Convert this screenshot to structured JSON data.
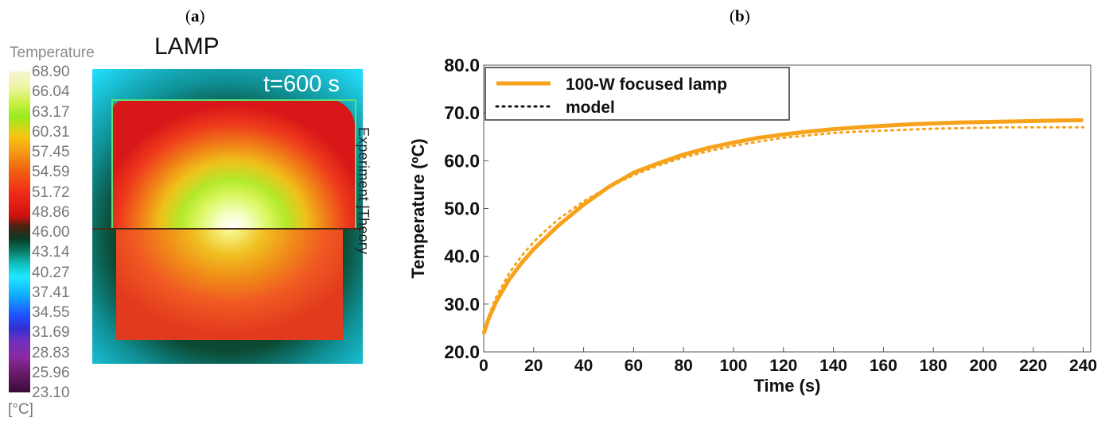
{
  "panels": {
    "a": "a",
    "b": "b"
  },
  "heatmap": {
    "colorbar_title": "Temperature",
    "title": "LAMP",
    "time_label": "t=600 s",
    "side_label_left": "Experiment",
    "side_label_sep": "|",
    "side_label_right": "Theory",
    "unit_label": "[°C]",
    "colorbar_ticks": [
      "68.90",
      "66.04",
      "63.17",
      "60.31",
      "57.45",
      "54.59",
      "51.72",
      "48.86",
      "46.00",
      "43.14",
      "40.27",
      "37.41",
      "34.55",
      "31.69",
      "28.83",
      "25.96",
      "23.10"
    ]
  },
  "chart_data": {
    "type": "line",
    "xlabel": "Time (s)",
    "ylabel": "Temperature (ºC)",
    "xlim": [
      0,
      243
    ],
    "ylim": [
      20,
      80
    ],
    "xticks": [
      0,
      20,
      40,
      60,
      80,
      100,
      120,
      140,
      160,
      180,
      200,
      220,
      240
    ],
    "yticks": [
      "20.0",
      "30.0",
      "40.0",
      "50.0",
      "60.0",
      "70.0",
      "80.0"
    ],
    "legend_position": "top-left",
    "grid": false,
    "series": [
      {
        "name": "100-W focused lamp",
        "style": "solid",
        "color": "#f7a21b",
        "x": [
          0,
          2,
          5,
          10,
          15,
          20,
          25,
          30,
          40,
          50,
          60,
          70,
          80,
          90,
          100,
          110,
          120,
          130,
          140,
          150,
          160,
          170,
          180,
          190,
          200,
          210,
          220,
          230,
          240
        ],
        "y": [
          23.8,
          27.0,
          30.5,
          35.0,
          38.5,
          41.5,
          44.0,
          46.5,
          50.8,
          54.5,
          57.5,
          59.5,
          61.3,
          62.7,
          63.8,
          64.8,
          65.5,
          66.1,
          66.6,
          67.0,
          67.3,
          67.6,
          67.8,
          68.0,
          68.1,
          68.2,
          68.3,
          68.4,
          68.5
        ]
      },
      {
        "name": "model",
        "style": "dotted",
        "color": "#f7a21b",
        "x": [
          0,
          2,
          5,
          10,
          15,
          20,
          25,
          30,
          40,
          50,
          60,
          70,
          80,
          90,
          100,
          110,
          120,
          130,
          140,
          150,
          160,
          170,
          180,
          190,
          200,
          210,
          220,
          230,
          240
        ],
        "y": [
          23.8,
          27.5,
          31.5,
          36.3,
          40.0,
          43.0,
          45.5,
          47.8,
          51.5,
          54.5,
          57.0,
          59.0,
          60.7,
          62.0,
          63.1,
          64.0,
          64.8,
          65.3,
          65.8,
          66.1,
          66.3,
          66.5,
          66.7,
          66.8,
          66.9,
          67.0,
          67.0,
          67.0,
          67.0
        ]
      }
    ]
  }
}
